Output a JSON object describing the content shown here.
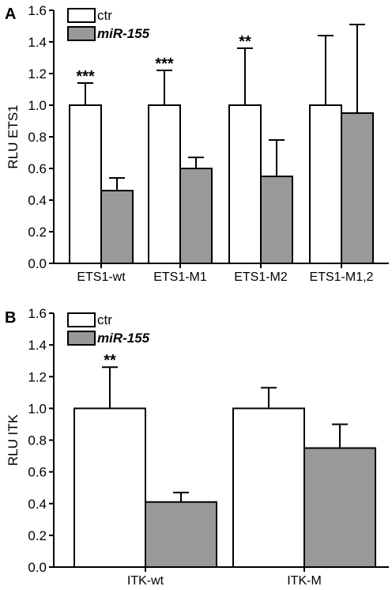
{
  "chart_data": [
    {
      "type": "bar",
      "panel": "A",
      "ylabel": "RLU ETS1",
      "ylim": [
        0,
        1.6
      ],
      "yticks": [
        "0.0",
        "0.2",
        "0.4",
        "0.6",
        "0.8",
        "1.0",
        "1.2",
        "1.4",
        "1.6"
      ],
      "categories": [
        "ETS1-wt",
        "ETS1-M1",
        "ETS1-M2",
        "ETS1-M1,2"
      ],
      "legend": {
        "placement": "top-left"
      },
      "series": [
        {
          "name": "ctr",
          "color": "#ffffff",
          "values": [
            1.0,
            1.0,
            1.0,
            1.0
          ],
          "errors": [
            0.14,
            0.22,
            0.36,
            0.44
          ]
        },
        {
          "name": "miR-155",
          "color": "#999999",
          "values": [
            0.46,
            0.6,
            0.55,
            0.95
          ],
          "errors": [
            0.08,
            0.07,
            0.23,
            0.56
          ]
        }
      ],
      "annotations": [
        "***",
        "***",
        "**",
        ""
      ]
    },
    {
      "type": "bar",
      "panel": "B",
      "ylabel": "RLU ITK",
      "ylim": [
        0,
        1.6
      ],
      "yticks": [
        "0.0",
        "0.2",
        "0.4",
        "0.6",
        "0.8",
        "1.0",
        "1.2",
        "1.4",
        "1.6"
      ],
      "categories": [
        "ITK-wt",
        "ITK-M"
      ],
      "legend": {
        "placement": "top-left"
      },
      "series": [
        {
          "name": "ctr",
          "color": "#ffffff",
          "values": [
            1.0,
            1.0
          ],
          "errors": [
            0.26,
            0.13
          ]
        },
        {
          "name": "miR-155",
          "color": "#999999",
          "values": [
            0.41,
            0.75
          ],
          "errors": [
            0.06,
            0.15
          ]
        }
      ],
      "annotations": [
        "**",
        ""
      ]
    }
  ]
}
